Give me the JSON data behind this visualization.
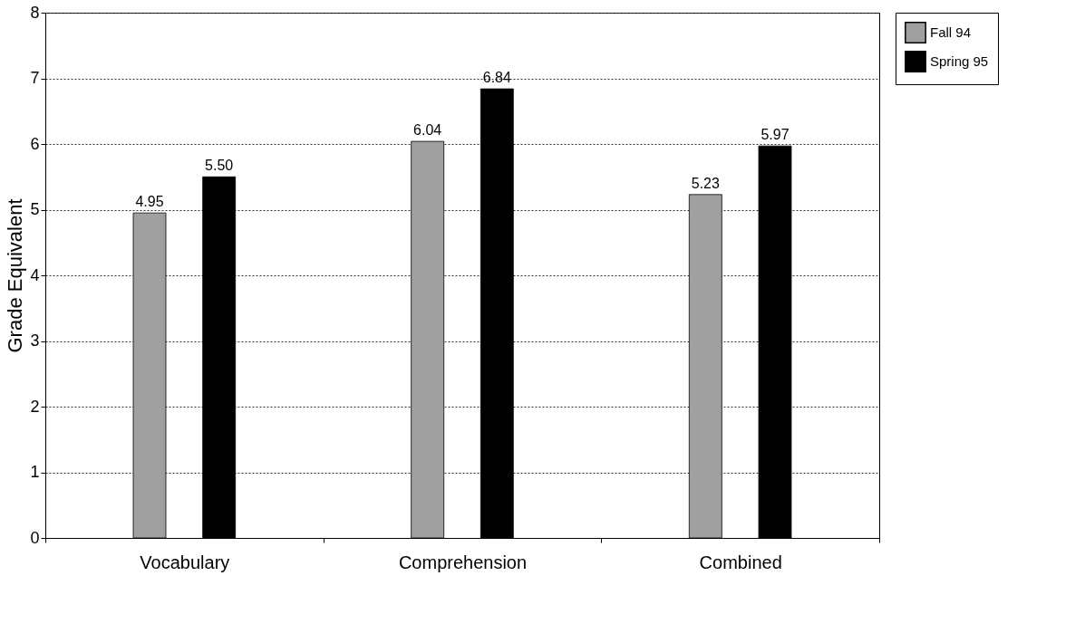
{
  "chart_data": {
    "type": "bar",
    "ylabel": "Grade Equivalent",
    "categories": [
      "Vocabulary",
      "Comprehension",
      "Combined"
    ],
    "series": [
      {
        "name": "Fall 94",
        "color": "#a0a0a0",
        "values": [
          4.95,
          6.04,
          5.23
        ],
        "value_labels": [
          "4.95",
          "6.04",
          "5.23"
        ]
      },
      {
        "name": "Spring 95",
        "color": "#000000",
        "values": [
          5.5,
          6.84,
          5.97
        ],
        "value_labels": [
          "5.50",
          "6.84",
          "5.97"
        ]
      }
    ],
    "ylim": [
      0,
      8
    ],
    "yticks": [
      0,
      1,
      2,
      3,
      4,
      5,
      6,
      7,
      8
    ],
    "grid": "y",
    "legend": "right"
  }
}
